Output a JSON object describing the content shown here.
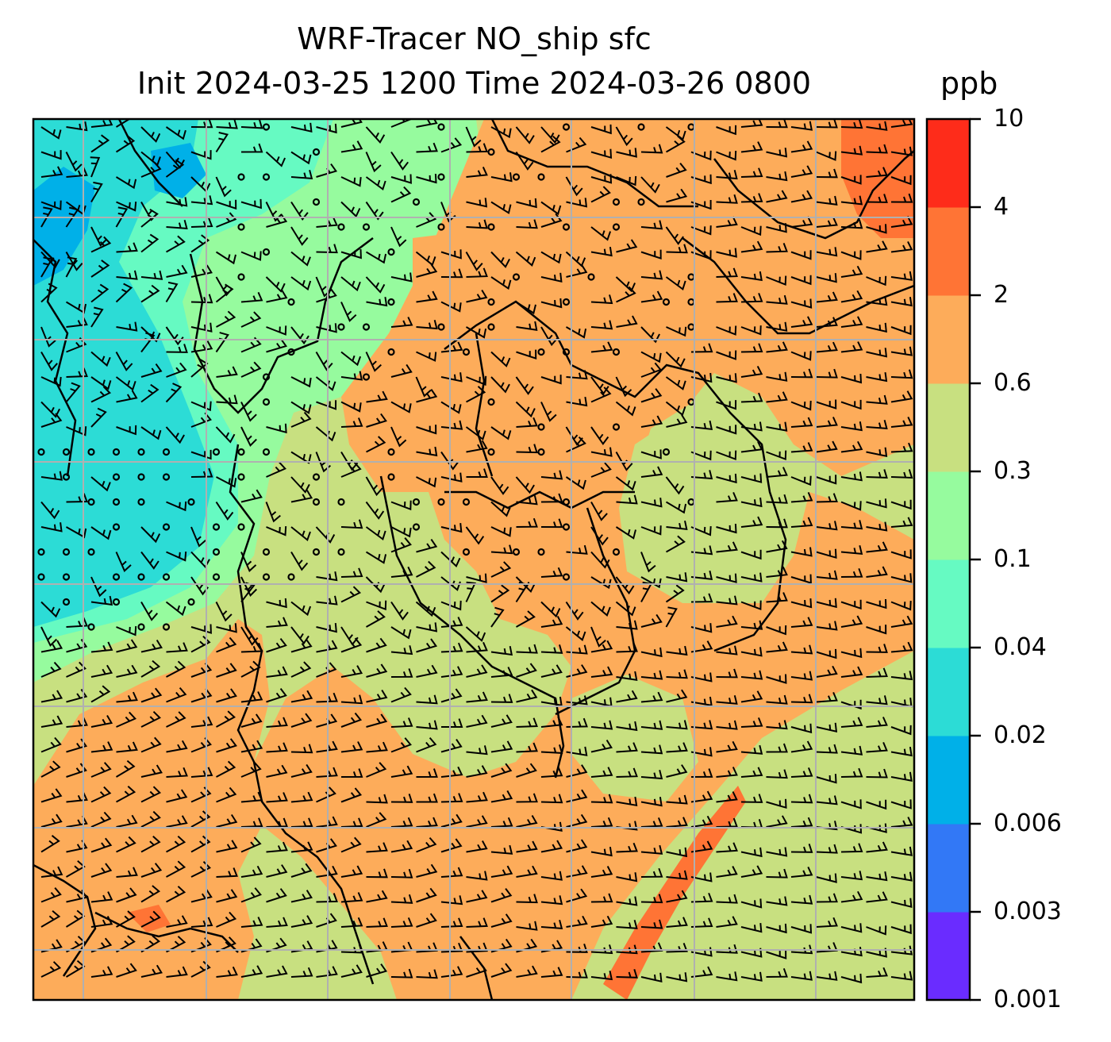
{
  "title_line1": "WRF-Tracer NO_ship sfc",
  "title_line2": "Init 2024-03-25 1200 Time 2024-03-26 0800",
  "colorbar": {
    "unit": "ppb",
    "levels": [
      "0.001",
      "0.003",
      "0.006",
      "0.02",
      "0.04",
      "0.1",
      "0.3",
      "0.6",
      "2",
      "4",
      "10"
    ],
    "colors": [
      "#6a2cff",
      "#3278f6",
      "#00b0e8",
      "#2cdcd6",
      "#66fac2",
      "#96fb9e",
      "#c8e080",
      "#fdac5a",
      "#ff7435",
      "#fe2c1a"
    ]
  },
  "map": {
    "field": "NO_ship surface concentration",
    "overlay": "wind barbs",
    "gridlines": true
  }
}
